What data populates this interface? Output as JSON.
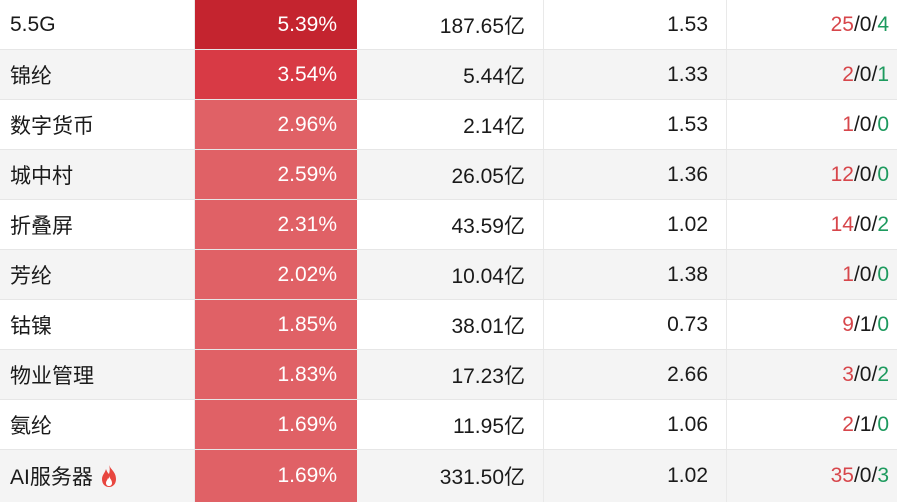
{
  "colors": {
    "rise": "#d7464b",
    "fall": "#1d9a5e",
    "heat_levels": [
      "#c4242f",
      "#d83a45",
      "#e06166"
    ]
  },
  "rows": [
    {
      "name": "5.5G",
      "pct": "5.39%",
      "amount": "187.65亿",
      "ratio": "1.53",
      "up": "25",
      "flat": "0",
      "down": "4",
      "heat": 0,
      "hot": false
    },
    {
      "name": "锦纶",
      "pct": "3.54%",
      "amount": "5.44亿",
      "ratio": "1.33",
      "up": "2",
      "flat": "0",
      "down": "1",
      "heat": 1,
      "hot": false
    },
    {
      "name": "数字货币",
      "pct": "2.96%",
      "amount": "2.14亿",
      "ratio": "1.53",
      "up": "1",
      "flat": "0",
      "down": "0",
      "heat": 2,
      "hot": false
    },
    {
      "name": "城中村",
      "pct": "2.59%",
      "amount": "26.05亿",
      "ratio": "1.36",
      "up": "12",
      "flat": "0",
      "down": "0",
      "heat": 2,
      "hot": false
    },
    {
      "name": "折叠屏",
      "pct": "2.31%",
      "amount": "43.59亿",
      "ratio": "1.02",
      "up": "14",
      "flat": "0",
      "down": "2",
      "heat": 2,
      "hot": false
    },
    {
      "name": "芳纶",
      "pct": "2.02%",
      "amount": "10.04亿",
      "ratio": "1.38",
      "up": "1",
      "flat": "0",
      "down": "0",
      "heat": 2,
      "hot": false
    },
    {
      "name": "钴镍",
      "pct": "1.85%",
      "amount": "38.01亿",
      "ratio": "0.73",
      "up": "9",
      "flat": "1",
      "down": "0",
      "heat": 2,
      "hot": false
    },
    {
      "name": "物业管理",
      "pct": "1.83%",
      "amount": "17.23亿",
      "ratio": "2.66",
      "up": "3",
      "flat": "0",
      "down": "2",
      "heat": 2,
      "hot": false
    },
    {
      "name": "氨纶",
      "pct": "1.69%",
      "amount": "11.95亿",
      "ratio": "1.06",
      "up": "2",
      "flat": "1",
      "down": "0",
      "heat": 2,
      "hot": false
    },
    {
      "name": "AI服务器",
      "pct": "1.69%",
      "amount": "331.50亿",
      "ratio": "1.02",
      "up": "35",
      "flat": "0",
      "down": "3",
      "heat": 2,
      "hot": true,
      "hot_icon": "fire-icon"
    }
  ]
}
